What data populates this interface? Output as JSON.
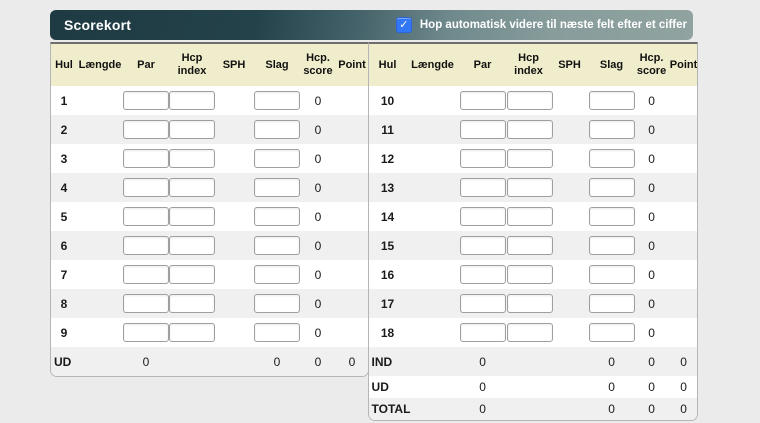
{
  "panel": {
    "title": "Scorekort",
    "autojump": {
      "checked": true,
      "checkmark": "✓",
      "label": "Hop automatisk videre til næste felt efter et ciffer"
    }
  },
  "colors": {
    "titlebar_dark": "#1e3a42",
    "titlebar_light": "#90a3a0",
    "checkbox_blue": "#3277f5",
    "thead_bg": "#efedcb",
    "stripe_gray": "#f0f0f0"
  },
  "columns": [
    "Hul",
    "Længde",
    "Par",
    "Hcp\nindex",
    "SPH",
    "Slag",
    "Hcp.\nscore",
    "Point"
  ],
  "inputs": {
    "par": {
      "value": "",
      "placeholder": ""
    },
    "hcp_index": {
      "value": "",
      "placeholder": ""
    },
    "slag": {
      "value": "",
      "placeholder": ""
    }
  },
  "front": {
    "holes": [
      {
        "hul": "1",
        "laengde": "",
        "sph": "",
        "hcp_score": "0",
        "point": ""
      },
      {
        "hul": "2",
        "laengde": "",
        "sph": "",
        "hcp_score": "0",
        "point": ""
      },
      {
        "hul": "3",
        "laengde": "",
        "sph": "",
        "hcp_score": "0",
        "point": ""
      },
      {
        "hul": "4",
        "laengde": "",
        "sph": "",
        "hcp_score": "0",
        "point": ""
      },
      {
        "hul": "5",
        "laengde": "",
        "sph": "",
        "hcp_score": "0",
        "point": ""
      },
      {
        "hul": "6",
        "laengde": "",
        "sph": "",
        "hcp_score": "0",
        "point": ""
      },
      {
        "hul": "7",
        "laengde": "",
        "sph": "",
        "hcp_score": "0",
        "point": ""
      },
      {
        "hul": "8",
        "laengde": "",
        "sph": "",
        "hcp_score": "0",
        "point": ""
      },
      {
        "hul": "9",
        "laengde": "",
        "sph": "",
        "hcp_score": "0",
        "point": ""
      }
    ],
    "totals": [
      {
        "label": "UD",
        "par": "0",
        "hcp_index": "",
        "sph": "",
        "slag": "0",
        "hcp_score": "0",
        "point": "0"
      }
    ]
  },
  "back": {
    "holes": [
      {
        "hul": "10",
        "laengde": "",
        "sph": "",
        "hcp_score": "0",
        "point": ""
      },
      {
        "hul": "11",
        "laengde": "",
        "sph": "",
        "hcp_score": "0",
        "point": ""
      },
      {
        "hul": "12",
        "laengde": "",
        "sph": "",
        "hcp_score": "0",
        "point": ""
      },
      {
        "hul": "13",
        "laengde": "",
        "sph": "",
        "hcp_score": "0",
        "point": ""
      },
      {
        "hul": "14",
        "laengde": "",
        "sph": "",
        "hcp_score": "0",
        "point": ""
      },
      {
        "hul": "15",
        "laengde": "",
        "sph": "",
        "hcp_score": "0",
        "point": ""
      },
      {
        "hul": "16",
        "laengde": "",
        "sph": "",
        "hcp_score": "0",
        "point": ""
      },
      {
        "hul": "17",
        "laengde": "",
        "sph": "",
        "hcp_score": "0",
        "point": ""
      },
      {
        "hul": "18",
        "laengde": "",
        "sph": "",
        "hcp_score": "0",
        "point": ""
      }
    ],
    "totals": [
      {
        "label": "IND",
        "par": "0",
        "hcp_index": "",
        "sph": "",
        "slag": "0",
        "hcp_score": "0",
        "point": "0"
      },
      {
        "label": "UD",
        "par": "0",
        "hcp_index": "",
        "sph": "",
        "slag": "0",
        "hcp_score": "0",
        "point": "0"
      },
      {
        "label": "TOTAL",
        "par": "0",
        "hcp_index": "",
        "sph": "",
        "slag": "0",
        "hcp_score": "0",
        "point": "0"
      }
    ]
  }
}
